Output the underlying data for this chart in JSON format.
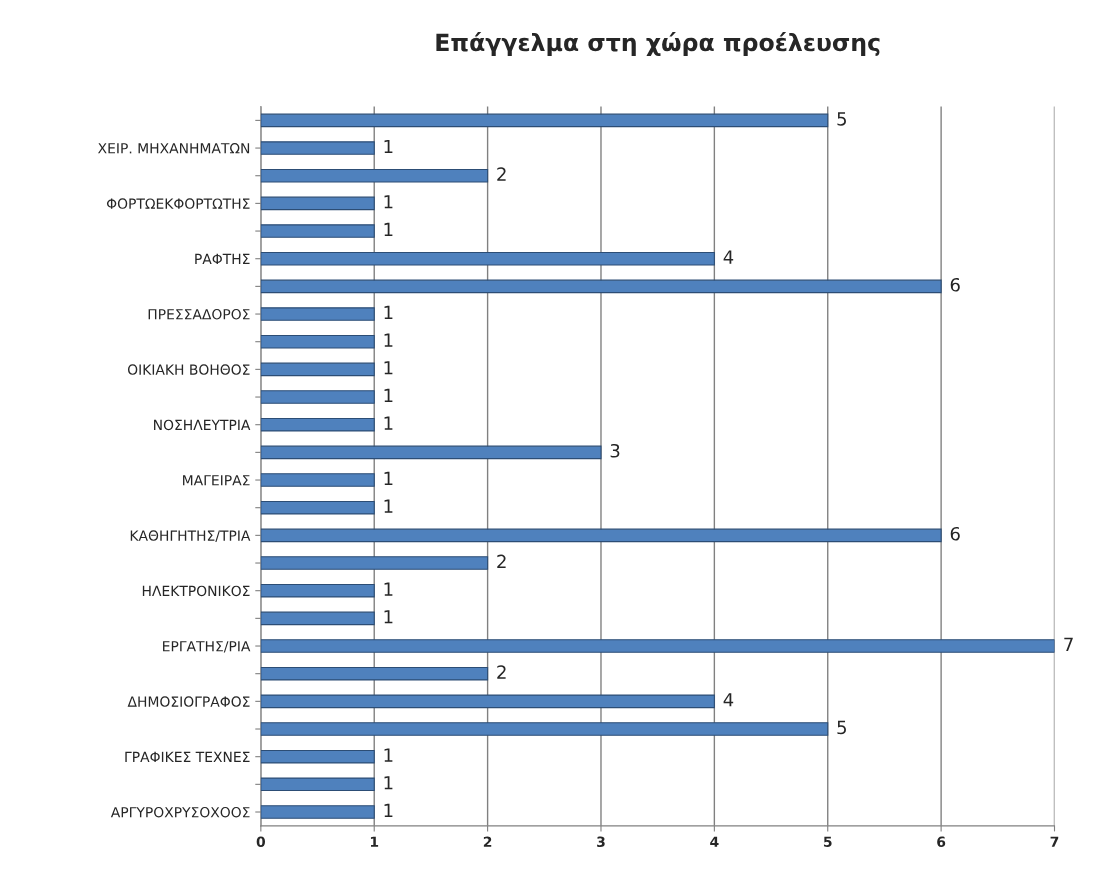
{
  "chart_data": {
    "type": "bar",
    "orientation": "horizontal",
    "title": "Επάγγελμα στη χώρα προέλευσης",
    "categories": [
      null,
      "ΧΕΙΡ. ΜΗΧΑΝΗΜΑΤΩΝ",
      null,
      "ΦΟΡΤΩΕΚΦΟΡΤΩΤΗΣ",
      null,
      "ΡΑΦΤΗΣ",
      null,
      "ΠΡΕΣΣΑΔΟΡΟΣ",
      null,
      "ΟΙΚΙΑΚΗ ΒΟΗΘΟΣ",
      null,
      "ΝΟΣΗΛΕΥΤΡΙΑ",
      null,
      "ΜΑΓΕΙΡΑΣ",
      null,
      "ΚΑΘΗΓΗΤΗΣ/ΤΡΙΑ",
      null,
      "ΗΛΕΚΤΡΟΝΙΚΟΣ",
      null,
      "ΕΡΓΑΤΗΣ/ΡΙΑ",
      null,
      "ΔΗΜΟΣΙΟΓΡΑΦΟΣ",
      null,
      "ΓΡΑΦΙΚΕΣ ΤΕΧΝΕΣ",
      null,
      "ΑΡΓΥΡΟΧΡΥΣΟΧΟΟΣ"
    ],
    "values": [
      5,
      1,
      2,
      1,
      1,
      4,
      6,
      1,
      1,
      1,
      1,
      1,
      3,
      1,
      1,
      6,
      2,
      1,
      1,
      7,
      2,
      4,
      5,
      1,
      1,
      1
    ],
    "color": "#4f81bd",
    "xlim": [
      0,
      7
    ],
    "xticks": [
      0,
      1,
      2,
      3,
      4,
      5,
      6,
      7
    ],
    "grid": "x",
    "data_labels": true
  }
}
